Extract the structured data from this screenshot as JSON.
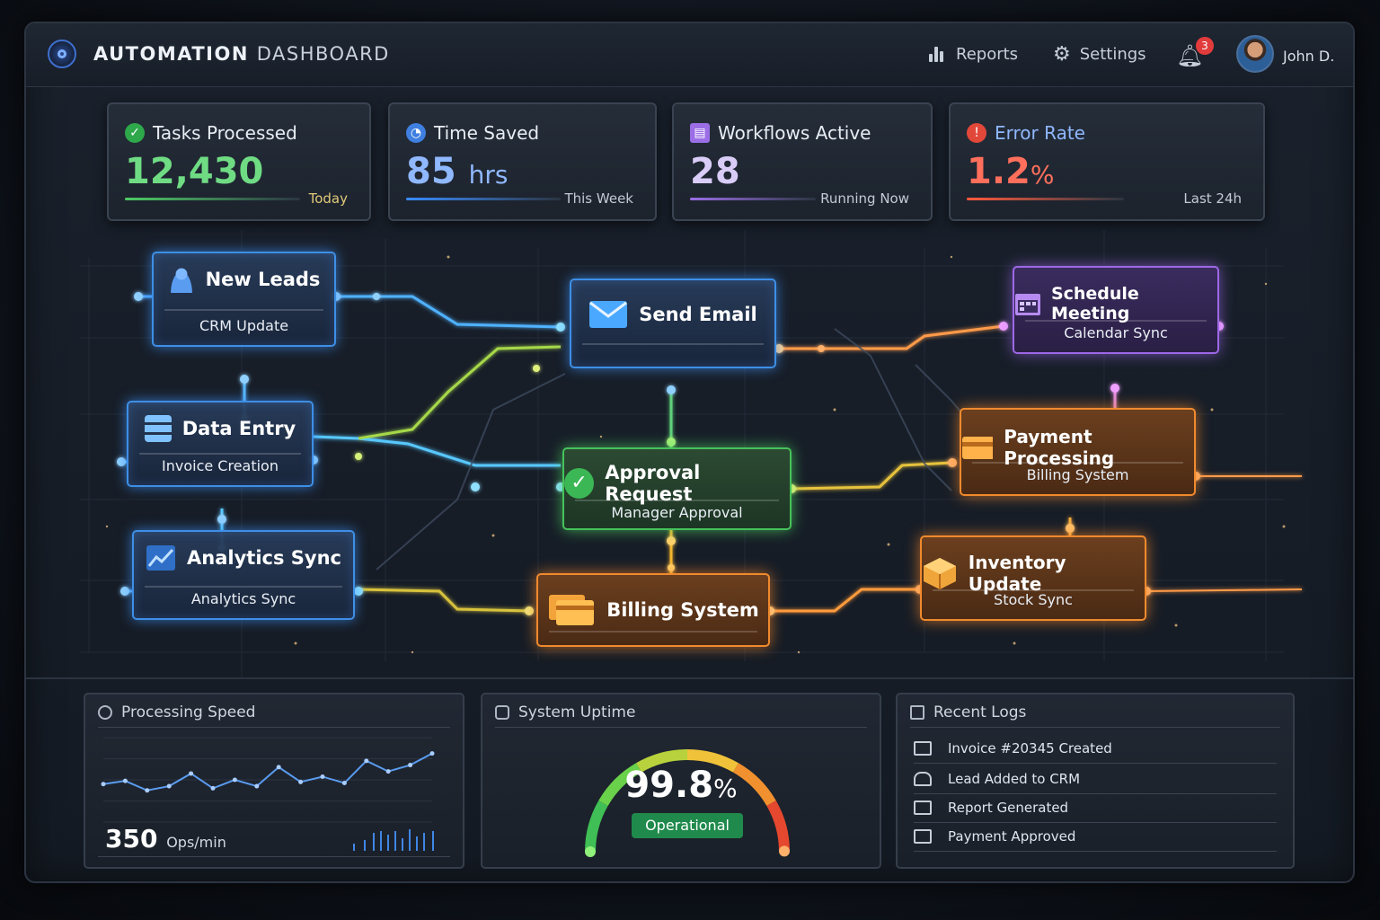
{
  "header": {
    "title_bold": "AUTOMATION",
    "title_light": "DASHBOARD",
    "nav": [
      {
        "label": "Reports",
        "icon": "bar-chart-icon"
      },
      {
        "label": "Settings",
        "icon": "gear-icon"
      }
    ],
    "notifications_count": "3",
    "user_name": "John D."
  },
  "stats": [
    {
      "label": "Tasks Processed",
      "value": "12,430",
      "unit": "",
      "sub": "Today",
      "color": "#5fd07a",
      "icon": "check-circle-icon"
    },
    {
      "label": "Time Saved",
      "value": "85",
      "unit": "hrs",
      "sub": "This Week",
      "color": "#6ea8ff",
      "icon": "clock-icon"
    },
    {
      "label": "Workflows Active",
      "value": "28",
      "unit": "",
      "sub": "Running Now",
      "color": "#c1a6ff",
      "icon": "layers-icon"
    },
    {
      "label": "Error Rate",
      "value": "1.2",
      "unit": "%",
      "sub": "Last 24h",
      "color": "#ff6a55",
      "icon": "alert-icon"
    }
  ],
  "workflow_nodes": [
    {
      "title": "New Leads",
      "subtitle": "CRM Update",
      "color": "blue",
      "icon": "user-icon"
    },
    {
      "title": "Data Entry",
      "subtitle": "Invoice Creation",
      "color": "blue",
      "icon": "database-icon"
    },
    {
      "title": "Analytics Sync",
      "subtitle": "Analytics Sync",
      "color": "blue",
      "icon": "chart-line-icon"
    },
    {
      "title": "Send Email",
      "subtitle": "",
      "color": "blue",
      "icon": "envelope-icon"
    },
    {
      "title": "Approval Request",
      "subtitle": "Manager Approval",
      "color": "green",
      "icon": "check-circle-icon"
    },
    {
      "title": "Billing System",
      "subtitle": "",
      "color": "orange",
      "icon": "credit-card-icon"
    },
    {
      "title": "Schedule Meeting",
      "subtitle": "Calendar Sync",
      "color": "purple",
      "icon": "calendar-icon"
    },
    {
      "title": "Payment Processing",
      "subtitle": "Billing System",
      "color": "orange",
      "icon": "wallet-icon"
    },
    {
      "title": "Inventory Update",
      "subtitle": "Stock Sync",
      "color": "orange",
      "icon": "box-icon"
    }
  ],
  "panels": {
    "speed": {
      "title": "Processing Speed",
      "value": "350",
      "unit": "Ops/min"
    },
    "uptime": {
      "title": "System Uptime",
      "value": "99.8",
      "unit": "%",
      "status": "Operational",
      "level": 0.998
    },
    "logs": {
      "title": "Recent Logs",
      "items": [
        {
          "text": "Invoice #20345 Created",
          "icon": "invoice-icon"
        },
        {
          "text": "Lead Added to CRM",
          "icon": "user-icon"
        },
        {
          "text": "Report Generated",
          "icon": "report-icon"
        },
        {
          "text": "Payment Approved",
          "icon": "payment-icon"
        }
      ]
    }
  },
  "chart_data": {
    "type": "line",
    "title": "Processing Speed",
    "x": [
      1,
      2,
      3,
      4,
      5,
      6,
      7,
      8,
      9,
      10,
      11,
      12,
      13,
      14,
      15,
      16
    ],
    "series": [
      {
        "values": [
          3.6,
          3.9,
          3.0,
          3.4,
          4.6,
          3.2,
          4.0,
          3.4,
          5.2,
          3.8,
          4.3,
          3.7,
          5.8,
          4.8,
          5.4,
          6.5
        ]
      }
    ],
    "ylim": [
      0,
      8
    ],
    "grid": true
  }
}
